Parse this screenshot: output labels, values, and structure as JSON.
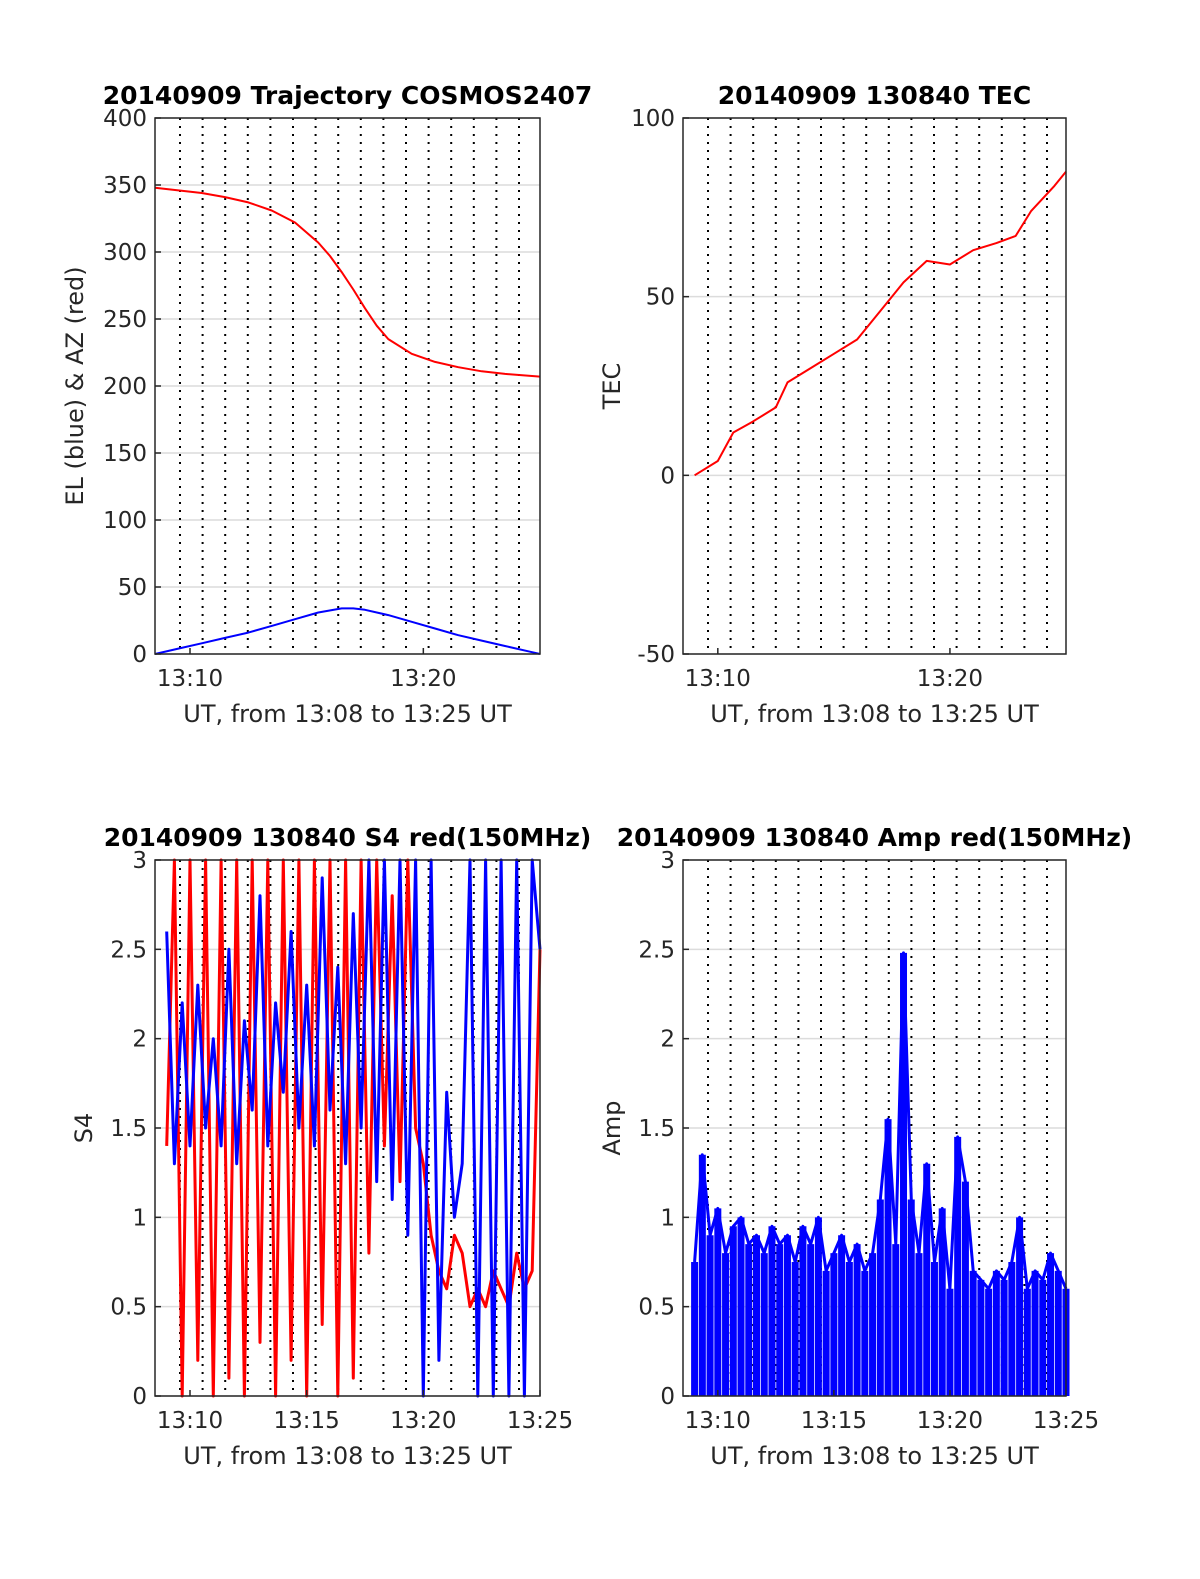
{
  "chart_data": [
    {
      "id": "trajectory",
      "type": "line",
      "title": "20140909 Trajectory COSMOS2407",
      "xlabel": "UT, from 13:08 to 13:25 UT",
      "ylabel": "EL (blue) & AZ (red)",
      "xlim": [
        "13:08:30",
        "13:25:00"
      ],
      "ylim": [
        0,
        400
      ],
      "xticks": [
        "13:10",
        "13:20"
      ],
      "yticks": [
        "0",
        "50",
        "100",
        "150",
        "200",
        "250",
        "300",
        "350",
        "400"
      ],
      "grid": true,
      "series": [
        {
          "color": "#ff0000",
          "x": [
            "13:08:30",
            "13:09:30",
            "13:10:30",
            "13:11:30",
            "13:12:30",
            "13:13:30",
            "13:14:30",
            "13:15:30",
            "13:16:00",
            "13:16:30",
            "13:17:00",
            "13:17:30",
            "13:18:00",
            "13:18:30",
            "13:19:30",
            "13:20:30",
            "13:21:30",
            "13:22:30",
            "13:23:30",
            "13:25:00"
          ],
          "values": [
            348,
            346,
            344,
            341,
            337,
            331,
            322,
            307,
            297,
            285,
            272,
            258,
            245,
            235,
            224,
            218,
            214,
            211,
            209,
            207
          ]
        },
        {
          "color": "#0000ff",
          "x": [
            "13:08:30",
            "13:09:30",
            "13:10:30",
            "13:11:30",
            "13:12:30",
            "13:13:30",
            "13:14:30",
            "13:15:30",
            "13:16:30",
            "13:17:00",
            "13:17:30",
            "13:18:30",
            "13:19:30",
            "13:20:30",
            "13:21:30",
            "13:22:30",
            "13:23:30",
            "13:24:30",
            "13:25:00"
          ],
          "values": [
            0,
            4,
            8,
            12,
            16,
            21,
            26,
            31,
            34,
            34,
            33,
            29,
            24,
            19,
            14,
            10,
            6,
            2,
            0
          ]
        }
      ]
    },
    {
      "id": "tec",
      "type": "line",
      "title": "20140909 130840 TEC",
      "xlabel": "UT, from 13:08 to 13:25 UT",
      "ylabel": "TEC",
      "xlim": [
        "13:08:30",
        "13:25:00"
      ],
      "ylim": [
        -50,
        100
      ],
      "xticks": [
        "13:10",
        "13:20"
      ],
      "yticks": [
        "-50",
        "0",
        "50",
        "100"
      ],
      "grid": true,
      "series": [
        {
          "color": "#ff0000",
          "x": [
            "13:09:00",
            "13:10:00",
            "13:10:40",
            "13:11:30",
            "13:12:30",
            "13:13:00",
            "13:14:00",
            "13:15:00",
            "13:16:00",
            "13:17:00",
            "13:18:00",
            "13:19:00",
            "13:20:00",
            "13:21:00",
            "13:22:00",
            "13:22:50",
            "13:23:30",
            "13:24:30",
            "13:25:00"
          ],
          "values": [
            0,
            4,
            12,
            15,
            19,
            26,
            30,
            34,
            38,
            46,
            54,
            60,
            59,
            63,
            65,
            67,
            74,
            81,
            85
          ]
        }
      ]
    },
    {
      "id": "s4",
      "type": "line",
      "title": "20140909 130840 S4 red(150MHz)",
      "xlabel": "UT, from 13:08 to 13:25 UT",
      "ylabel": "S4",
      "xlim": [
        "13:08:30",
        "13:25:00"
      ],
      "ylim": [
        0,
        3
      ],
      "xticks": [
        "13:10",
        "13:15",
        "13:20",
        "13:25"
      ],
      "yticks": [
        "0",
        "0.5",
        "1",
        "1.5",
        "2",
        "2.5",
        "3"
      ],
      "grid": true,
      "series": [
        {
          "color": "#ff0000",
          "x": [
            "13:09:00",
            "13:09:20",
            "13:09:40",
            "13:10:00",
            "13:10:20",
            "13:10:40",
            "13:11:00",
            "13:11:20",
            "13:11:40",
            "13:12:00",
            "13:12:20",
            "13:12:40",
            "13:13:00",
            "13:13:20",
            "13:13:40",
            "13:14:00",
            "13:14:20",
            "13:14:40",
            "13:15:00",
            "13:15:20",
            "13:15:40",
            "13:16:00",
            "13:16:20",
            "13:16:40",
            "13:17:00",
            "13:17:20",
            "13:17:40",
            "13:18:00",
            "13:18:20",
            "13:18:40",
            "13:19:00",
            "13:19:20",
            "13:19:40",
            "13:20:00",
            "13:20:20",
            "13:20:40",
            "13:21:00",
            "13:21:20",
            "13:21:40",
            "13:22:00",
            "13:22:20",
            "13:22:40",
            "13:23:00",
            "13:23:20",
            "13:23:40",
            "13:24:00",
            "13:24:20",
            "13:24:40",
            "13:25:00"
          ],
          "values": [
            1.4,
            3,
            0,
            3,
            0.2,
            3,
            0,
            3,
            0.1,
            3,
            0,
            3,
            0.3,
            3,
            0,
            3,
            0.2,
            3,
            0,
            3,
            0.4,
            3,
            0,
            3,
            0.1,
            3,
            0.8,
            3,
            1.4,
            2.8,
            1.2,
            3,
            1.5,
            1.3,
            0.9,
            0.7,
            0.6,
            0.9,
            0.8,
            0.5,
            0.6,
            0.5,
            0.7,
            0.6,
            0.5,
            0.8,
            0.6,
            0.7,
            2.5
          ]
        },
        {
          "color": "#0000ff",
          "x": [
            "13:09:00",
            "13:09:20",
            "13:09:40",
            "13:10:00",
            "13:10:20",
            "13:10:40",
            "13:11:00",
            "13:11:20",
            "13:11:40",
            "13:12:00",
            "13:12:20",
            "13:12:40",
            "13:13:00",
            "13:13:20",
            "13:13:40",
            "13:14:00",
            "13:14:20",
            "13:14:40",
            "13:15:00",
            "13:15:20",
            "13:15:40",
            "13:16:00",
            "13:16:20",
            "13:16:40",
            "13:17:00",
            "13:17:20",
            "13:17:40",
            "13:18:00",
            "13:18:20",
            "13:18:40",
            "13:19:00",
            "13:19:20",
            "13:19:40",
            "13:20:00",
            "13:20:20",
            "13:20:40",
            "13:21:00",
            "13:21:20",
            "13:21:40",
            "13:22:00",
            "13:22:20",
            "13:22:40",
            "13:23:00",
            "13:23:20",
            "13:23:40",
            "13:24:00",
            "13:24:20",
            "13:24:40",
            "13:25:00"
          ],
          "values": [
            2.6,
            1.3,
            2.2,
            1.4,
            2.3,
            1.5,
            2.0,
            1.4,
            2.5,
            1.3,
            2.1,
            1.6,
            2.8,
            1.4,
            2.2,
            1.7,
            2.6,
            1.5,
            2.3,
            1.4,
            2.9,
            1.6,
            2.4,
            1.3,
            2.7,
            1.5,
            3,
            1.2,
            3,
            1.1,
            3,
            0.9,
            3,
            0,
            3,
            0.2,
            1.7,
            1.0,
            1.3,
            3,
            0,
            3,
            0,
            3,
            0,
            3,
            0,
            3,
            2.5
          ]
        }
      ]
    },
    {
      "id": "amp",
      "type": "line",
      "title": "20140909 130840 Amp red(150MHz)",
      "xlabel": "UT, from 13:08 to 13:25 UT",
      "ylabel": "Amp",
      "xlim": [
        "13:08:30",
        "13:25:00"
      ],
      "ylim": [
        0,
        3
      ],
      "xticks": [
        "13:10",
        "13:15",
        "13:20",
        "13:25"
      ],
      "yticks": [
        "0",
        "0.5",
        "1",
        "1.5",
        "2",
        "2.5",
        "3"
      ],
      "grid": true,
      "series": [
        {
          "color": "#0000ff",
          "x": [
            "13:09:00",
            "13:09:20",
            "13:09:40",
            "13:10:00",
            "13:10:20",
            "13:10:40",
            "13:11:00",
            "13:11:20",
            "13:11:40",
            "13:12:00",
            "13:12:20",
            "13:12:40",
            "13:13:00",
            "13:13:20",
            "13:13:40",
            "13:14:00",
            "13:14:20",
            "13:14:40",
            "13:15:00",
            "13:15:20",
            "13:15:40",
            "13:16:00",
            "13:16:20",
            "13:16:40",
            "13:17:00",
            "13:17:20",
            "13:17:40",
            "13:18:00",
            "13:18:20",
            "13:18:40",
            "13:19:00",
            "13:19:20",
            "13:19:40",
            "13:20:00",
            "13:20:20",
            "13:20:40",
            "13:21:00",
            "13:21:20",
            "13:21:40",
            "13:22:00",
            "13:22:20",
            "13:22:40",
            "13:23:00",
            "13:23:20",
            "13:23:40",
            "13:24:00",
            "13:24:20",
            "13:24:40",
            "13:25:00"
          ],
          "values": [
            0.75,
            1.35,
            0.9,
            1.05,
            0.8,
            0.95,
            1.0,
            0.85,
            0.9,
            0.8,
            0.95,
            0.85,
            0.9,
            0.75,
            0.95,
            0.85,
            1.0,
            0.7,
            0.8,
            0.9,
            0.75,
            0.85,
            0.7,
            0.8,
            1.1,
            1.55,
            0.85,
            2.48,
            1.1,
            0.8,
            1.3,
            0.75,
            1.05,
            0.6,
            1.45,
            1.2,
            0.7,
            0.65,
            0.6,
            0.7,
            0.65,
            0.75,
            1.0,
            0.6,
            0.7,
            0.65,
            0.8,
            0.7,
            0.6
          ]
        }
      ]
    }
  ]
}
